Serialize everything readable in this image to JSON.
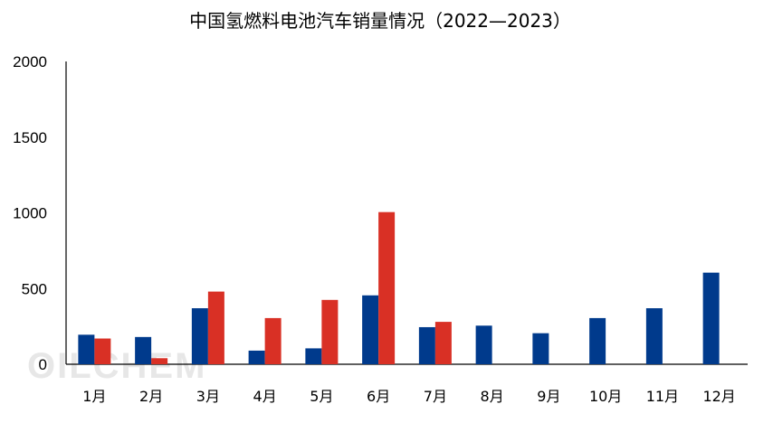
{
  "chart_data": {
    "type": "bar",
    "title": "中国氢燃料电池汽车销量情况（2022—2023）",
    "xlabel": "",
    "ylabel": "",
    "ylim": [
      0,
      2000
    ],
    "yticks": [
      0,
      500,
      1000,
      1500,
      2000
    ],
    "grid": false,
    "legend": "none",
    "categories": [
      "1月",
      "2月",
      "3月",
      "4月",
      "5月",
      "6月",
      "7月",
      "8月",
      "9月",
      "10月",
      "11月",
      "12月"
    ],
    "series": [
      {
        "color": "#003a8c",
        "values": [
          195,
          180,
          370,
          90,
          105,
          455,
          245,
          255,
          205,
          305,
          370,
          605
        ]
      },
      {
        "color": "#d93025",
        "values": [
          170,
          40,
          480,
          305,
          425,
          1005,
          280,
          null,
          null,
          null,
          null,
          null
        ]
      }
    ]
  },
  "watermark": "OILCHEM"
}
